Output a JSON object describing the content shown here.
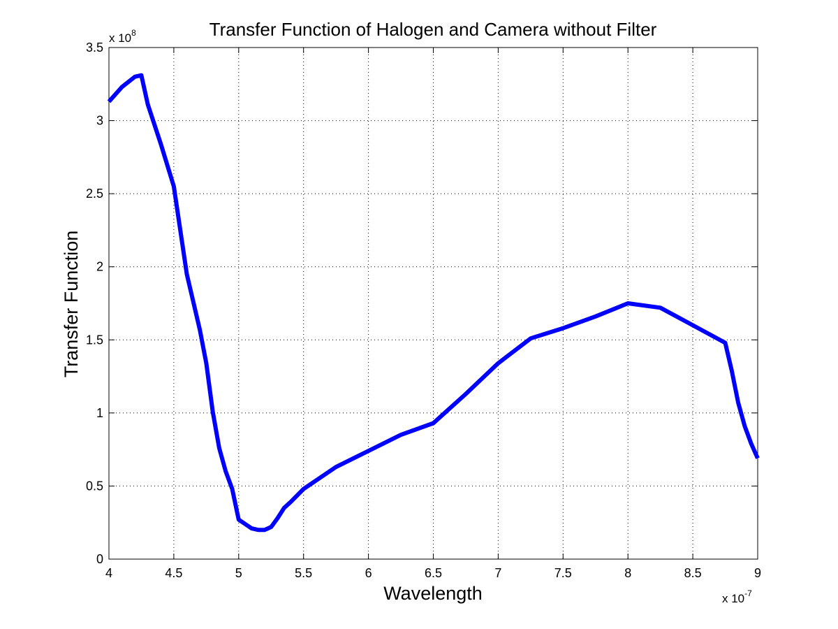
{
  "chart_data": {
    "type": "line",
    "title": "Transfer Function of Halogen and Camera without Filter",
    "xlabel": "Wavelength",
    "ylabel": "Transfer Function",
    "x_multiplier": "x 10",
    "x_multiplier_exp": "-7",
    "y_multiplier": "x 10",
    "y_multiplier_exp": "8",
    "xlim": [
      4,
      9
    ],
    "ylim": [
      0,
      3.5
    ],
    "xticks": [
      4,
      4.5,
      5,
      5.5,
      6,
      6.5,
      7,
      7.5,
      8,
      8.5,
      9
    ],
    "yticks": [
      0,
      0.5,
      1,
      1.5,
      2,
      2.5,
      3,
      3.5
    ],
    "xtick_labels": [
      "4",
      "4.5",
      "5",
      "5.5",
      "6",
      "6.5",
      "7",
      "7.5",
      "8",
      "8.5",
      "9"
    ],
    "ytick_labels": [
      "0",
      "0.5",
      "1",
      "1.5",
      "2",
      "2.5",
      "3",
      "3.5"
    ],
    "grid": true,
    "line_color": "#0000ff",
    "series": [
      {
        "x": [
          4.0,
          4.1,
          4.2,
          4.25,
          4.3,
          4.4,
          4.5,
          4.6,
          4.7,
          4.75,
          4.8,
          4.85,
          4.9,
          4.95,
          5.0,
          5.05,
          5.1,
          5.15,
          5.2,
          5.25,
          5.3,
          5.35,
          5.4,
          5.5,
          5.75,
          6.0,
          6.25,
          6.5,
          6.75,
          7.0,
          7.25,
          7.5,
          7.75,
          8.0,
          8.25,
          8.5,
          8.75,
          8.8,
          8.85,
          8.9,
          8.95,
          9.0
        ],
        "y": [
          3.13,
          3.23,
          3.3,
          3.31,
          3.11,
          2.84,
          2.55,
          1.95,
          1.57,
          1.34,
          1.01,
          0.76,
          0.6,
          0.48,
          0.27,
          0.24,
          0.21,
          0.2,
          0.2,
          0.22,
          0.28,
          0.35,
          0.39,
          0.48,
          0.63,
          0.74,
          0.85,
          0.93,
          1.13,
          1.34,
          1.51,
          1.58,
          1.66,
          1.75,
          1.72,
          1.6,
          1.48,
          1.29,
          1.07,
          0.91,
          0.79,
          0.69
        ]
      }
    ]
  }
}
